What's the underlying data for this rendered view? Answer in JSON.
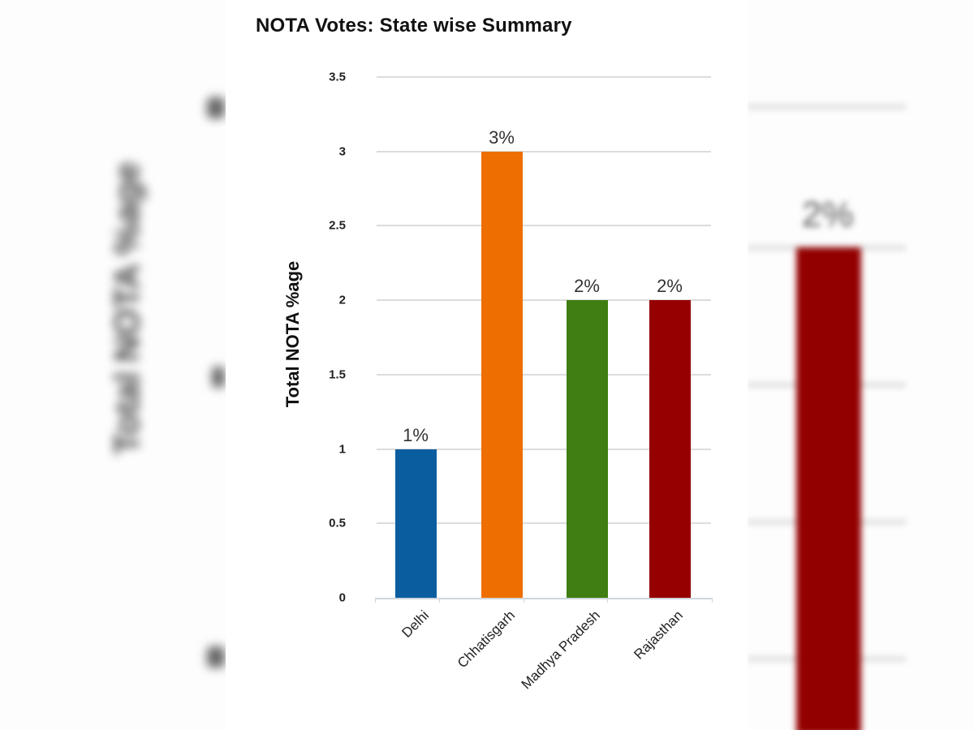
{
  "chart_data": {
    "type": "bar",
    "title": "NOTA Votes: State wise Summary",
    "xlabel": "",
    "ylabel": "Total NOTA %age",
    "categories": [
      "Delhi",
      "Chhatisgarh",
      "Madhya Pradesh",
      "Rajasthan"
    ],
    "values": [
      1,
      3,
      2,
      2
    ],
    "data_labels": [
      "1%",
      "3%",
      "2%",
      "2%"
    ],
    "colors": [
      "#0a5ea0",
      "#ee6f00",
      "#3f7e12",
      "#960000"
    ],
    "ylim": [
      0,
      3.5
    ],
    "yticks": [
      "0",
      "0.5",
      "1",
      "1.5",
      "2",
      "2.5",
      "3",
      "3.5"
    ],
    "grid": true,
    "legend": null
  },
  "background": {
    "left_ylabel": "Total NOTA %age",
    "right_bar_label": "2%",
    "right_bar_color": "#930000"
  }
}
